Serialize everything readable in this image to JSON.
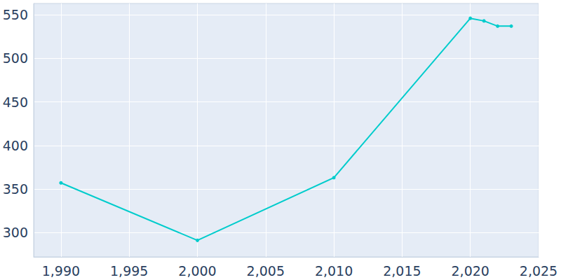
{
  "chart_data": {
    "type": "line",
    "x": [
      1990,
      2000,
      2010,
      2020,
      2021,
      2022,
      2023
    ],
    "values": [
      357,
      291,
      363,
      546,
      543,
      537,
      537
    ],
    "color": "#00cccc",
    "marker": "circle",
    "xlim": [
      1988,
      2025
    ],
    "xticks": [
      1990,
      1995,
      2000,
      2005,
      2010,
      2015,
      2020,
      2025
    ],
    "ylim": [
      272,
      563
    ],
    "yticks": [
      300,
      350,
      400,
      450,
      500,
      550
    ],
    "grid": true
  }
}
